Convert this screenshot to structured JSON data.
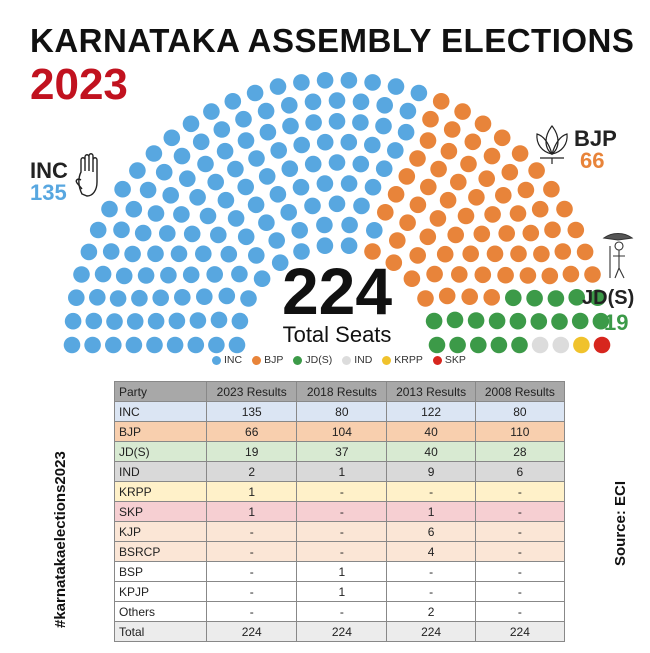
{
  "header": {
    "title": "KARNATAKA ASSEMBLY ELECTIONS",
    "year": "2023"
  },
  "center": {
    "total": "224",
    "subtitle": "Total Seats"
  },
  "callouts": {
    "inc": {
      "label": "INC",
      "count": "135"
    },
    "bjp": {
      "label": "BJP",
      "count": "66"
    },
    "jds": {
      "label": "JD(S)",
      "count": "19"
    }
  },
  "side_text": {
    "hashtag": "#karnatakaelections2023",
    "source": "Source: ECI"
  },
  "chart_data": {
    "type": "parliament",
    "total_seats": 224,
    "series": [
      {
        "name": "INC",
        "value": 135,
        "color": "#58a7e0"
      },
      {
        "name": "BJP",
        "value": 66,
        "color": "#e8843a"
      },
      {
        "name": "JD(S)",
        "value": 19,
        "color": "#3c9a48"
      },
      {
        "name": "IND",
        "value": 2,
        "color": "#dcdcdc"
      },
      {
        "name": "KRPP",
        "value": 1,
        "color": "#f0c22c"
      },
      {
        "name": "SKP",
        "value": 1,
        "color": "#d7261e"
      }
    ],
    "legend_position": "bottom"
  },
  "table": {
    "headers": [
      "Party",
      "2023 Results",
      "2018 Results",
      "2013 Results",
      "2008 Results"
    ],
    "rows": [
      {
        "cells": [
          "INC",
          "135",
          "80",
          "122",
          "80"
        ],
        "color": "#dbe5f3"
      },
      {
        "cells": [
          "BJP",
          "66",
          "104",
          "40",
          "110"
        ],
        "color": "#f8cfae"
      },
      {
        "cells": [
          "JD(S)",
          "19",
          "37",
          "40",
          "28"
        ],
        "color": "#d8ead2"
      },
      {
        "cells": [
          "IND",
          "2",
          "1",
          "9",
          "6"
        ],
        "color": "#d9d9d9"
      },
      {
        "cells": [
          "KRPP",
          "1",
          "-",
          "-",
          "-"
        ],
        "color": "#fff1c9"
      },
      {
        "cells": [
          "SKP",
          "1",
          "-",
          "1",
          "-"
        ],
        "color": "#f6cfd2"
      },
      {
        "cells": [
          "KJP",
          "-",
          "-",
          "6",
          "-"
        ],
        "color": "#fbe6d6"
      },
      {
        "cells": [
          "BSRCP",
          "-",
          "-",
          "4",
          "-"
        ],
        "color": "#fbe6d6"
      },
      {
        "cells": [
          "BSP",
          "-",
          "1",
          "-",
          "-"
        ],
        "color": "#ffffff"
      },
      {
        "cells": [
          "KPJP",
          "-",
          "1",
          "-",
          "-"
        ],
        "color": "#ffffff"
      },
      {
        "cells": [
          "Others",
          "-",
          "-",
          "2",
          "-"
        ],
        "color": "#ffffff"
      },
      {
        "cells": [
          "Total",
          "224",
          "224",
          "224",
          "224"
        ],
        "color": "#ececec"
      }
    ]
  }
}
